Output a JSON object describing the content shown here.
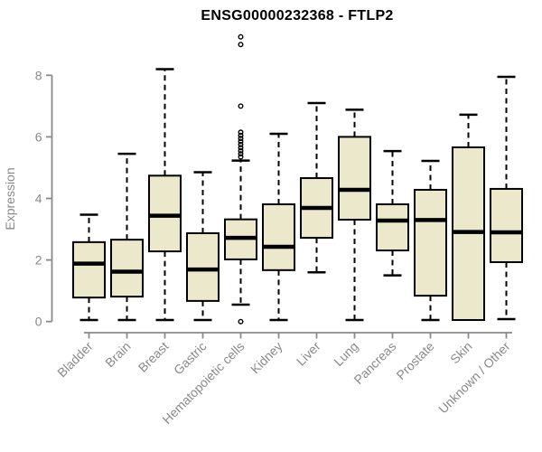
{
  "chart_data": {
    "type": "boxplot",
    "title": "ENSG00000232368 - FTLP2",
    "ylabel": "Expression",
    "xlabel": "",
    "ylim": [
      0,
      8
    ],
    "yticks": [
      0,
      2,
      4,
      6,
      8
    ],
    "grid": false,
    "legend": "none",
    "categories": [
      "Bladder",
      "Brain",
      "Breast",
      "Gastric",
      "Hematopoietic cells",
      "Kidney",
      "Liver",
      "Lung",
      "Pancreas",
      "Prostate",
      "Skin",
      "Unknown / Other"
    ],
    "series": [
      {
        "name": "Bladder",
        "whisker_low": 0.05,
        "q1": 0.78,
        "median": 1.88,
        "q3": 2.58,
        "whisker_high": 3.47,
        "outliers": []
      },
      {
        "name": "Brain",
        "whisker_low": 0.05,
        "q1": 0.81,
        "median": 1.62,
        "q3": 2.66,
        "whisker_high": 5.45,
        "outliers": []
      },
      {
        "name": "Breast",
        "whisker_low": 0.05,
        "q1": 2.28,
        "median": 3.44,
        "q3": 4.74,
        "whisker_high": 8.2,
        "outliers": []
      },
      {
        "name": "Gastric",
        "whisker_low": 0.05,
        "q1": 0.67,
        "median": 1.69,
        "q3": 2.87,
        "whisker_high": 4.85,
        "outliers": []
      },
      {
        "name": "Hematopoietic cells",
        "whisker_low": 0.55,
        "q1": 2.02,
        "median": 2.72,
        "q3": 3.32,
        "whisker_high": 5.23,
        "outliers": [
          9.25,
          9.0,
          7.0,
          6.15,
          6.05,
          5.95,
          5.85,
          5.75,
          5.65,
          5.55,
          5.45,
          5.35,
          0.0
        ]
      },
      {
        "name": "Kidney",
        "whisker_low": 0.05,
        "q1": 1.67,
        "median": 2.43,
        "q3": 3.81,
        "whisker_high": 6.1,
        "outliers": []
      },
      {
        "name": "Liver",
        "whisker_low": 1.6,
        "q1": 2.72,
        "median": 3.69,
        "q3": 4.66,
        "whisker_high": 7.1,
        "outliers": []
      },
      {
        "name": "Lung",
        "whisker_low": 0.05,
        "q1": 3.31,
        "median": 4.28,
        "q3": 6.0,
        "whisker_high": 6.88,
        "outliers": []
      },
      {
        "name": "Pancreas",
        "whisker_low": 1.5,
        "q1": 2.31,
        "median": 3.28,
        "q3": 3.81,
        "whisker_high": 5.54,
        "outliers": []
      },
      {
        "name": "Prostate",
        "whisker_low": 0.05,
        "q1": 0.84,
        "median": 3.3,
        "q3": 4.28,
        "whisker_high": 5.22,
        "outliers": []
      },
      {
        "name": "Skin",
        "whisker_low": 0.05,
        "q1": 0.05,
        "median": 2.91,
        "q3": 5.66,
        "whisker_high": 6.72,
        "outliers": []
      },
      {
        "name": "Unknown / Other",
        "whisker_low": 0.08,
        "q1": 1.93,
        "median": 2.9,
        "q3": 4.31,
        "whisker_high": 7.95,
        "outliers": []
      }
    ],
    "colors": {
      "box_fill": "#ECE8CC",
      "box_border": "#000000",
      "median": "#000000",
      "whisker": "#000000",
      "outlier": "#000000",
      "axis": "#898989",
      "title": "#000000"
    }
  }
}
